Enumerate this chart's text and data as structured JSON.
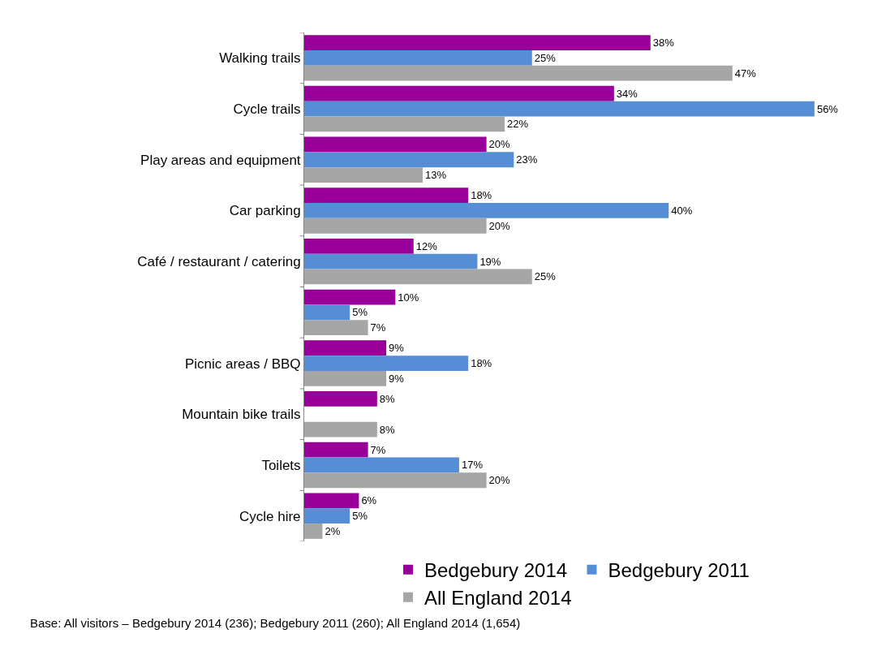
{
  "chart_data": {
    "type": "bar",
    "orientation": "horizontal",
    "categories": [
      "Walking trails",
      "Cycle trails",
      "Play areas and equipment",
      "Car parking",
      "Café / restaurant / catering",
      null,
      "Picnic areas / BBQ",
      "Mountain bike trails",
      "Toilets",
      "Cycle hire"
    ],
    "series": [
      {
        "name": "Bedgebury 2014",
        "color": "#990099",
        "values": [
          38,
          34,
          20,
          18,
          12,
          10,
          9,
          8,
          7,
          6
        ],
        "value_labels": [
          "38%",
          "34%",
          "20%",
          "18%",
          "12%",
          "10%",
          "9%",
          "8%",
          "7%",
          "6%"
        ]
      },
      {
        "name": "Bedgebury 2011",
        "color": "#558ed5",
        "values": [
          25,
          56,
          23,
          40,
          19,
          5,
          18,
          null,
          17,
          5
        ],
        "value_labels": [
          "25%",
          "56%",
          "23%",
          "40%",
          "19%",
          "5%",
          "18%",
          null,
          "17%",
          "5%"
        ]
      },
      {
        "name": "All England 2014",
        "color": "#a6a6a6",
        "values": [
          47,
          22,
          13,
          20,
          25,
          7,
          9,
          8,
          20,
          2
        ],
        "value_labels": [
          "47%",
          "22%",
          "13%",
          "20%",
          "25%",
          "7%",
          "9%",
          "8%",
          "20%",
          "2%"
        ]
      }
    ],
    "legend": "bottom",
    "annotations": [
      "Base: All visitors – Bedgebury 2014 (236); Bedgebury 2011 (260); All England 2014 (1,654)"
    ]
  }
}
